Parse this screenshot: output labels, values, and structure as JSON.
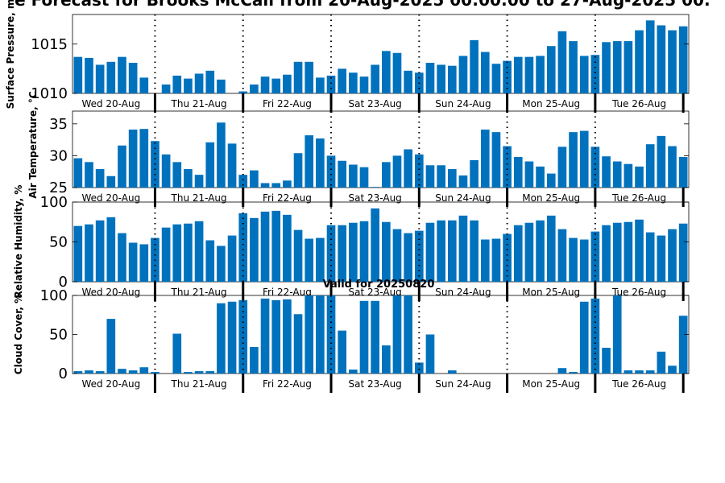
{
  "title": "e Forecast for Brooks McCall from 20-Aug-2025 00:00:00 to 27-Aug-2025 00:",
  "valid_note": "Valid for 20250820",
  "bar_color": "#0072BD",
  "chart_data": [
    {
      "type": "bar",
      "ylabel": "Surface Pressure, m",
      "ylim": [
        1010,
        1018
      ],
      "yticks": [
        1010,
        1015
      ],
      "day_labels": [
        "Wed 20-Aug",
        "Thu 21-Aug",
        "Fri 22-Aug",
        "Sat 23-Aug",
        "Sun 24-Aug",
        "Mon 25-Aug",
        "Tue 26-Aug"
      ],
      "values": [
        1013.7,
        1013.6,
        1012.9,
        1013.2,
        1013.7,
        1013.1,
        1011.6,
        1010.0,
        1010.9,
        1011.8,
        1011.5,
        1012.0,
        1012.3,
        1011.4,
        1010.0,
        1010.2,
        1010.9,
        1011.7,
        1011.5,
        1011.9,
        1013.2,
        1013.2,
        1011.6,
        1011.8,
        1012.5,
        1012.1,
        1011.7,
        1012.9,
        1014.3,
        1014.1,
        1012.3,
        1012.1,
        1013.1,
        1012.9,
        1012.8,
        1013.8,
        1015.4,
        1014.2,
        1013.0,
        1013.3,
        1013.7,
        1013.7,
        1013.8,
        1014.8,
        1016.3,
        1015.3,
        1013.8,
        1013.9,
        1015.2,
        1015.3,
        1015.3,
        1016.4,
        1017.4,
        1016.9,
        1016.4,
        1016.8
      ]
    },
    {
      "type": "bar",
      "ylabel": "Air Temperature, °C",
      "ylim": [
        25,
        37
      ],
      "yticks": [
        25,
        30,
        35
      ],
      "day_labels": [
        "Wed 20-Aug",
        "Thu 21-Aug",
        "Fri 22-Aug",
        "Sat 23-Aug",
        "Sun 24-Aug",
        "Mon 25-Aug",
        "Tue 26-Aug"
      ],
      "values": [
        29.6,
        29.0,
        27.9,
        26.8,
        31.6,
        34.1,
        34.2,
        32.3,
        30.2,
        29.0,
        27.9,
        27.0,
        32.1,
        35.2,
        31.9,
        27.0,
        27.7,
        25.7,
        25.7,
        26.1,
        30.4,
        33.2,
        32.7,
        30.0,
        29.2,
        28.6,
        28.2,
        25.1,
        29.0,
        30.0,
        31.0,
        30.2,
        28.5,
        28.5,
        27.9,
        26.9,
        29.3,
        34.1,
        33.7,
        31.5,
        29.8,
        29.1,
        28.3,
        27.2,
        31.4,
        33.7,
        33.9,
        31.4,
        29.9,
        29.1,
        28.7,
        28.3,
        31.8,
        33.1,
        31.5,
        29.8
      ]
    },
    {
      "type": "bar",
      "ylabel": "Relative Humidity, %",
      "ylim": [
        0,
        100
      ],
      "yticks": [
        0,
        50,
        100
      ],
      "day_labels": [
        "Wed 20-Aug",
        "Thu 21-Aug",
        "Fri 22-Aug",
        "Sat 23-Aug",
        "Sun 24-Aug",
        "Mon 25-Aug",
        "Tue 26-Aug"
      ],
      "values": [
        70,
        72,
        77,
        81,
        61,
        49,
        47,
        55,
        68,
        72,
        73,
        76,
        52,
        45,
        58,
        86,
        80,
        88,
        89,
        84,
        65,
        54,
        55,
        71,
        71,
        74,
        76,
        92,
        75,
        66,
        61,
        64,
        74,
        77,
        77,
        83,
        77,
        53,
        54,
        60,
        71,
        74,
        77,
        83,
        66,
        55,
        53,
        63,
        71,
        74,
        75,
        78,
        62,
        58,
        66,
        73
      ]
    },
    {
      "type": "bar",
      "ylabel": "Cloud Cover, %",
      "ylim": [
        0,
        100
      ],
      "yticks": [
        0,
        50,
        100
      ],
      "day_labels": [
        "Wed 20-Aug",
        "Thu 21-Aug",
        "Fri 22-Aug",
        "Sat 23-Aug",
        "Sun 24-Aug",
        "Mon 25-Aug",
        "Tue 26-Aug"
      ],
      "values": [
        3,
        4,
        3,
        70,
        6,
        4,
        8,
        2,
        0,
        51,
        2,
        3,
        3,
        90,
        92,
        94,
        34,
        96,
        94,
        95,
        76,
        100,
        100,
        100,
        55,
        5,
        93,
        93,
        36,
        100,
        100,
        14,
        50,
        0,
        4,
        0,
        0,
        0,
        0,
        0,
        0,
        0,
        0,
        0,
        7,
        2,
        92,
        96,
        33,
        100,
        4,
        4,
        4,
        28,
        10,
        74
      ]
    }
  ]
}
